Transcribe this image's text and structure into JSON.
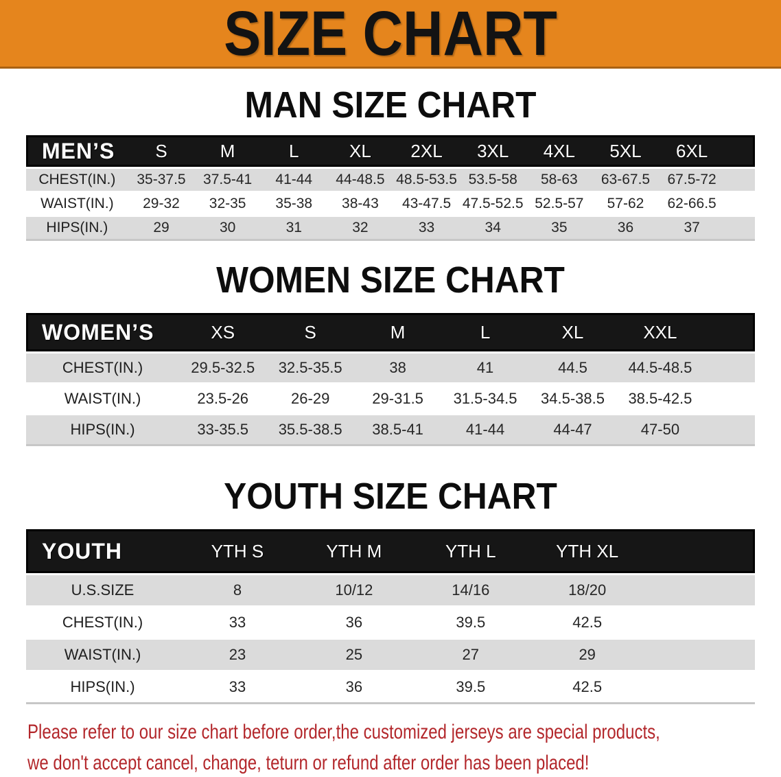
{
  "banner": {
    "title": "SIZE CHART"
  },
  "colors": {
    "banner_orange": "#E5851D",
    "header_bar_black": "#161616",
    "row_stripe_gray": "#DBDBDB",
    "warning_red": "#B3272B"
  },
  "sections": [
    {
      "title": "MAN SIZE CHART",
      "header_label": "MEN’S",
      "columns": [
        "S",
        "M",
        "L",
        "XL",
        "2XL",
        "3XL",
        "4XL",
        "5XL",
        "6XL"
      ],
      "rows": [
        {
          "label": "CHEST(IN.)",
          "values": [
            "35-37.5",
            "37.5-41",
            "41-44",
            "44-48.5",
            "48.5-53.5",
            "53.5-58",
            "58-63",
            "63-67.5",
            "67.5-72"
          ]
        },
        {
          "label": "WAIST(IN.)",
          "values": [
            "29-32",
            "32-35",
            "35-38",
            "38-43",
            "43-47.5",
            "47.5-52.5",
            "52.5-57",
            "57-62",
            "62-66.5"
          ]
        },
        {
          "label": "HIPS(IN.)",
          "values": [
            "29",
            "30",
            "31",
            "32",
            "33",
            "34",
            "35",
            "36",
            "37"
          ]
        }
      ]
    },
    {
      "title": "WOMEN SIZE CHART",
      "header_label": "WOMEN’S",
      "columns": [
        "XS",
        "S",
        "M",
        "L",
        "XL",
        "XXL"
      ],
      "rows": [
        {
          "label": "CHEST(IN.)",
          "values": [
            "29.5-32.5",
            "32.5-35.5",
            "38",
            "41",
            "44.5",
            "44.5-48.5"
          ]
        },
        {
          "label": "WAIST(IN.)",
          "values": [
            "23.5-26",
            "26-29",
            "29-31.5",
            "31.5-34.5",
            "34.5-38.5",
            "38.5-42.5"
          ]
        },
        {
          "label": "HIPS(IN.)",
          "values": [
            "33-35.5",
            "35.5-38.5",
            "38.5-41",
            "41-44",
            "44-47",
            "47-50"
          ]
        }
      ]
    },
    {
      "title": "YOUTH SIZE CHART",
      "header_label": "YOUTH",
      "columns": [
        "YTH S",
        "YTH M",
        "YTH L",
        "YTH XL"
      ],
      "rows": [
        {
          "label": "U.S.SIZE",
          "values": [
            "8",
            "10/12",
            "14/16",
            "18/20"
          ]
        },
        {
          "label": "CHEST(IN.)",
          "values": [
            "33",
            "36",
            "39.5",
            "42.5"
          ]
        },
        {
          "label": "WAIST(IN.)",
          "values": [
            "23",
            "25",
            "27",
            "29"
          ]
        },
        {
          "label": "HIPS(IN.)",
          "values": [
            "33",
            "36",
            "39.5",
            "42.5"
          ]
        }
      ]
    }
  ],
  "footnote": {
    "line1": "Please refer to our size chart before order,the customized jerseys are special products,",
    "line2": "we don't accept cancel, change, teturn or refund after order has been placed!"
  }
}
